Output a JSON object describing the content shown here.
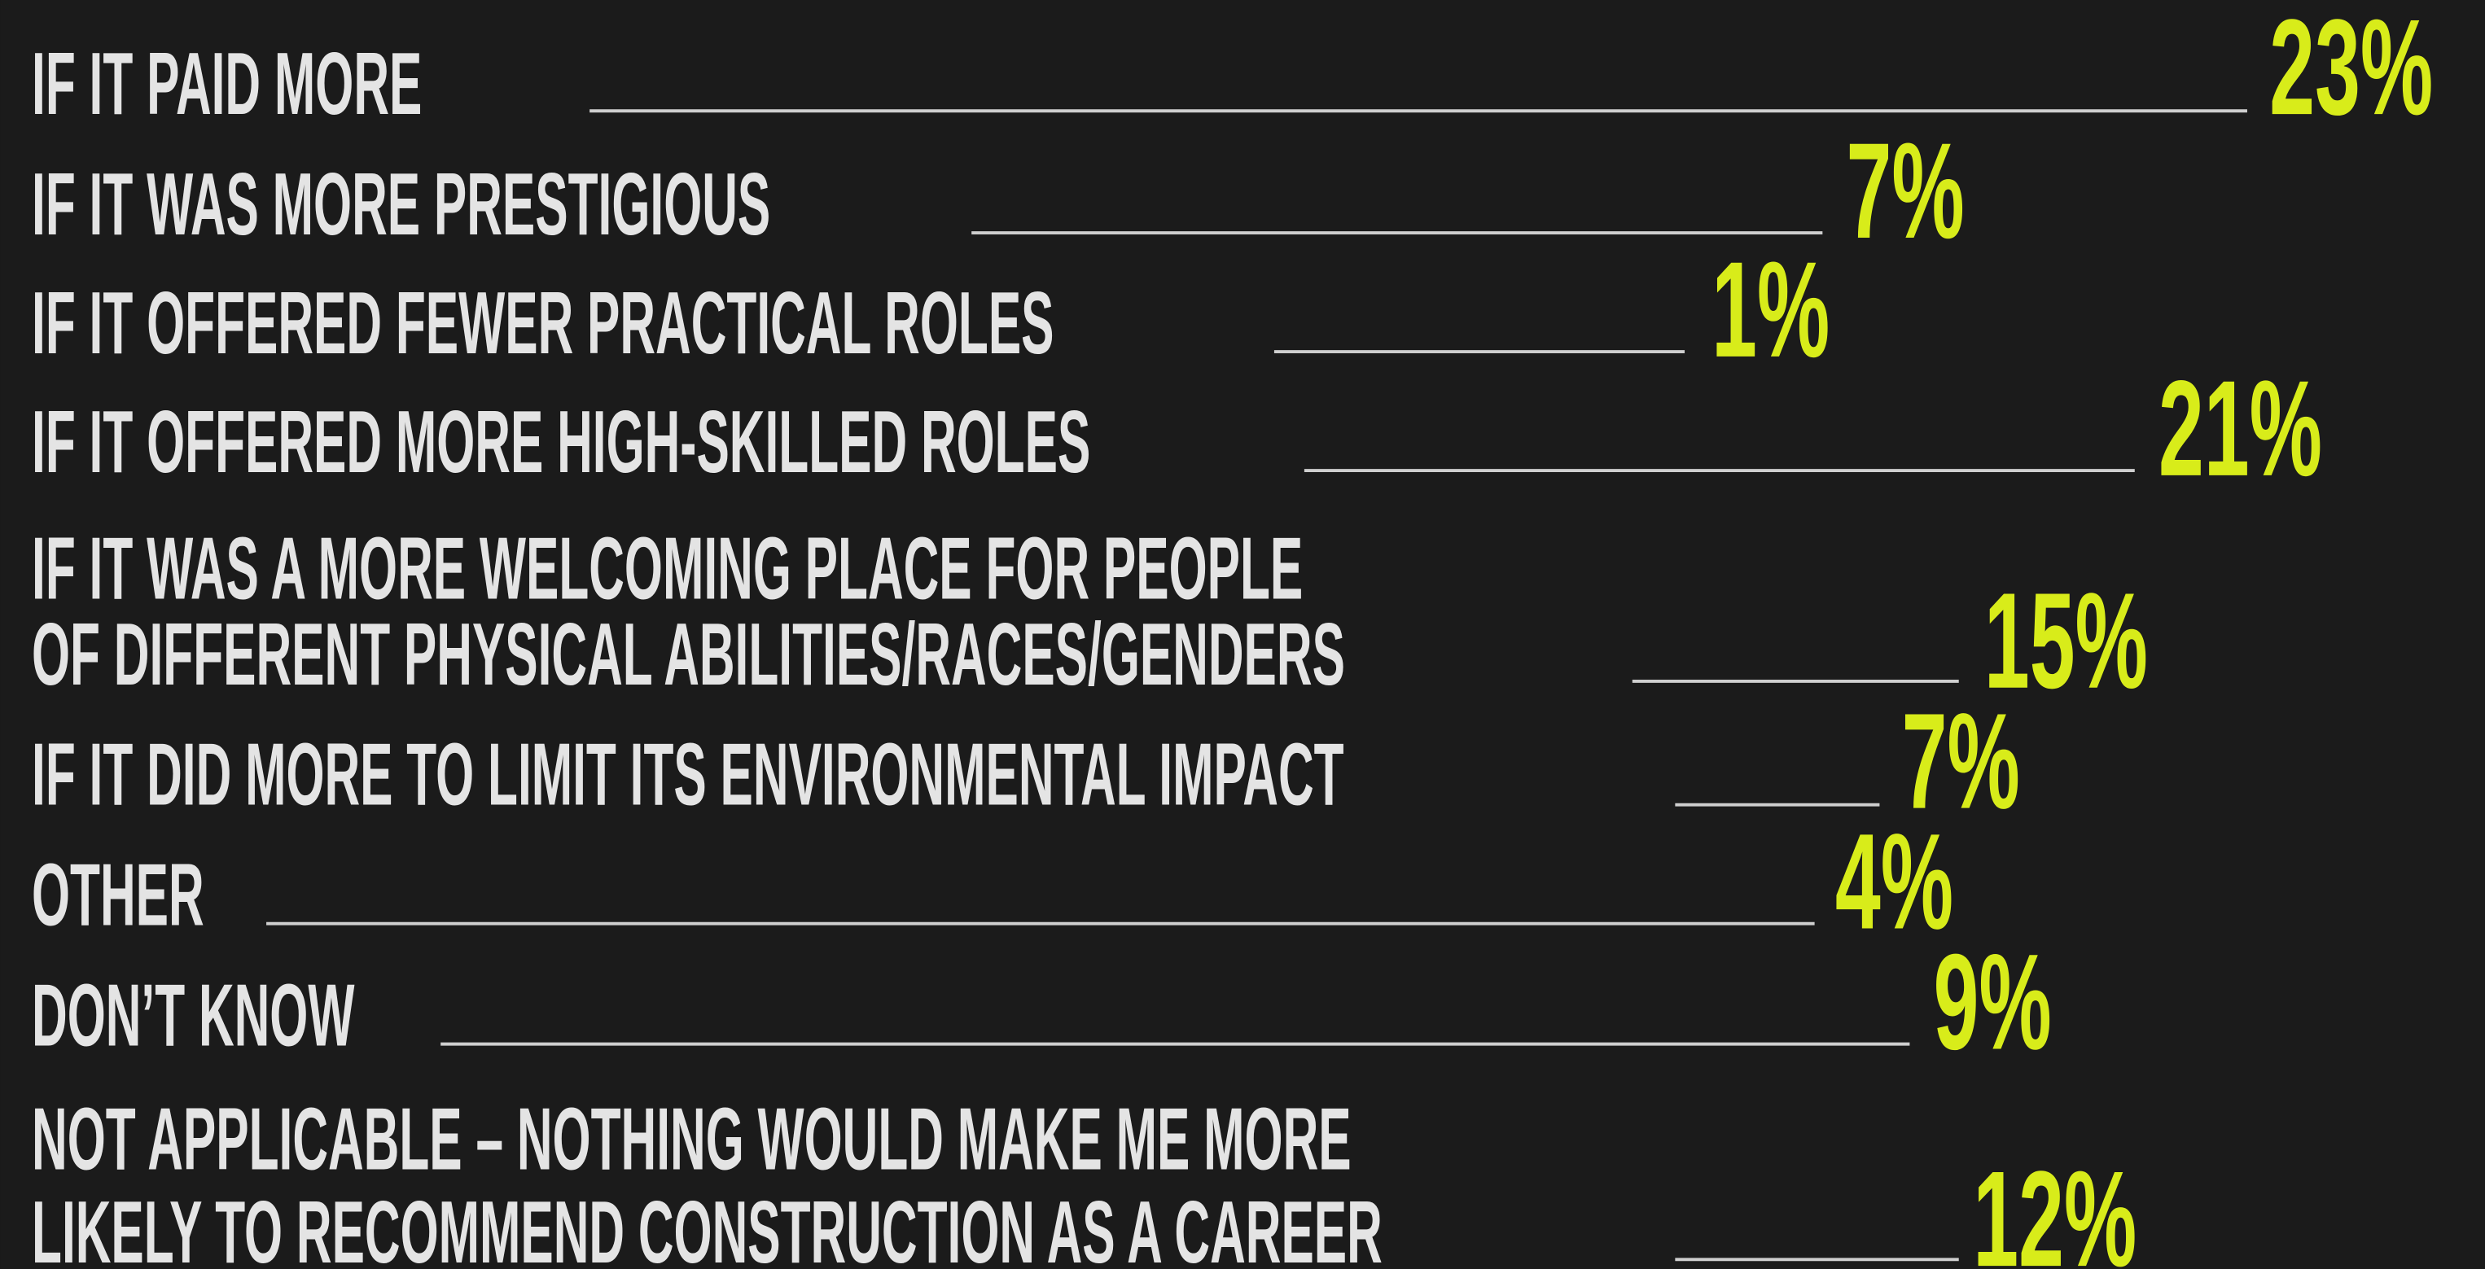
{
  "rows": [
    {
      "label": [
        "IF IT PAID MORE"
      ],
      "value": "23%"
    },
    {
      "label": [
        "IF IT WAS MORE PRESTIGIOUS"
      ],
      "value": "7%"
    },
    {
      "label": [
        "IF IT OFFERED FEWER PRACTICAL ROLES"
      ],
      "value": "1%"
    },
    {
      "label": [
        "IF IT OFFERED MORE HIGH-SKILLED ROLES"
      ],
      "value": "21%"
    },
    {
      "label": [
        "IF IT WAS A MORE WELCOMING PLACE FOR PEOPLE",
        "OF DIFFERENT PHYSICAL ABILITIES/RACES/GENDERS"
      ],
      "value": "15%"
    },
    {
      "label": [
        "IF IT DID MORE TO LIMIT ITS ENVIRONMENTAL IMPACT"
      ],
      "value": "7%"
    },
    {
      "label": [
        "OTHER"
      ],
      "value": "4%"
    },
    {
      "label": [
        "DON’T KNOW"
      ],
      "value": "9%"
    },
    {
      "label": [
        "NOT APPLICABLE – NOTHING WOULD MAKE ME MORE",
        "LIKELY TO RECOMMEND CONSTRUCTION AS A CAREER"
      ],
      "value": "12%"
    }
  ]
}
